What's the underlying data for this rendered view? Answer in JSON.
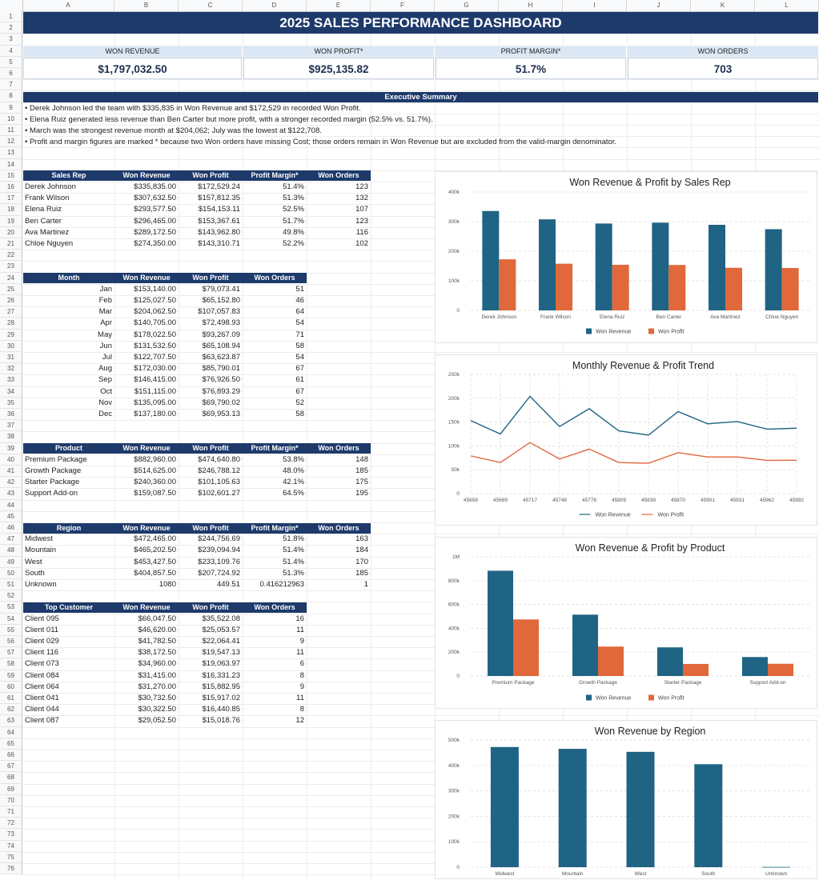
{
  "columns": [
    "A",
    "B",
    "C",
    "D",
    "E",
    "F",
    "G",
    "H",
    "I",
    "J",
    "K",
    "L"
  ],
  "rows": [
    "1",
    "2",
    "3",
    "4",
    "5",
    "6",
    "7",
    "8",
    "9",
    "10",
    "11",
    "12",
    "13",
    "14",
    "15",
    "16",
    "17",
    "18",
    "19",
    "20",
    "21",
    "22",
    "23",
    "24",
    "25",
    "26",
    "27",
    "28",
    "29",
    "30",
    "31",
    "32",
    "33",
    "34",
    "35",
    "36",
    "37",
    "38",
    "39",
    "40",
    "41",
    "42",
    "43",
    "44",
    "45",
    "46",
    "47",
    "48",
    "49",
    "50",
    "51",
    "52",
    "53",
    "54",
    "55",
    "56",
    "57",
    "58",
    "59",
    "60",
    "61",
    "62",
    "63",
    "64",
    "65",
    "66",
    "67",
    "68",
    "69",
    "70",
    "71",
    "72",
    "73",
    "74",
    "75",
    "76"
  ],
  "title": "2025 SALES PERFORMANCE DASHBOARD",
  "kpis": [
    {
      "label": "WON REVENUE",
      "value": "$1,797,032.50"
    },
    {
      "label": "WON PROFIT*",
      "value": "$925,135.82"
    },
    {
      "label": "PROFIT MARGIN*",
      "value": "51.7%"
    },
    {
      "label": "WON ORDERS",
      "value": "703"
    }
  ],
  "summary": {
    "heading": "Executive Summary",
    "lines": [
      "• Derek Johnson led the team with $335,835 in Won Revenue and $172,529 in recorded Won Profit.",
      "• Elena Ruiz generated less revenue than Ben Carter but more profit, with a stronger recorded margin (52.5% vs. 51.7%).",
      "• March was the strongest revenue month at $204,062; July was the lowest at $122,708.",
      "• Profit and margin figures are marked * because two Won orders have missing Cost; those orders remain in Won Revenue but are excluded from the valid-margin denominator."
    ]
  },
  "tables": {
    "reps": {
      "headers": [
        "Sales Rep",
        "Won Revenue",
        "Won Profit",
        "Profit Margin*",
        "Won Orders"
      ],
      "rows": [
        [
          "Derek Johnson",
          "$335,835.00",
          "$172,529.24",
          "51.4%",
          "123"
        ],
        [
          "Frank Wilson",
          "$307,632.50",
          "$157,812.35",
          "51.3%",
          "132"
        ],
        [
          "Elena Ruiz",
          "$293,577.50",
          "$154,153.11",
          "52.5%",
          "107"
        ],
        [
          "Ben Carter",
          "$296,465.00",
          "$153,367.61",
          "51.7%",
          "123"
        ],
        [
          "Ava Martinez",
          "$289,172.50",
          "$143,962.80",
          "49.8%",
          "116"
        ],
        [
          "Chloe Nguyen",
          "$274,350.00",
          "$143,310.71",
          "52.2%",
          "102"
        ]
      ]
    },
    "months": {
      "headers": [
        "Month",
        "Won Revenue",
        "Won Profit",
        "Won Orders"
      ],
      "rows": [
        [
          "Jan",
          "$153,140.00",
          "$79,073.41",
          "51"
        ],
        [
          "Feb",
          "$125,027.50",
          "$65,152.80",
          "46"
        ],
        [
          "Mar",
          "$204,062.50",
          "$107,057.83",
          "64"
        ],
        [
          "Apr",
          "$140,705.00",
          "$72,498.93",
          "54"
        ],
        [
          "May",
          "$178,022.50",
          "$93,267.09",
          "71"
        ],
        [
          "Jun",
          "$131,532.50",
          "$65,108.94",
          "58"
        ],
        [
          "Jul",
          "$122,707.50",
          "$63,623.87",
          "54"
        ],
        [
          "Aug",
          "$172,030.00",
          "$85,790.01",
          "67"
        ],
        [
          "Sep",
          "$146,415.00",
          "$76,926.50",
          "61"
        ],
        [
          "Oct",
          "$151,115.00",
          "$76,893.29",
          "67"
        ],
        [
          "Nov",
          "$135,095.00",
          "$69,790.02",
          "52"
        ],
        [
          "Dec",
          "$137,180.00",
          "$69,953.13",
          "58"
        ]
      ]
    },
    "products": {
      "headers": [
        "Product",
        "Won Revenue",
        "Won Profit",
        "Profit Margin*",
        "Won Orders"
      ],
      "rows": [
        [
          "Premium Package",
          "$882,960.00",
          "$474,640.80",
          "53.8%",
          "148"
        ],
        [
          "Growth Package",
          "$514,625.00",
          "$246,788.12",
          "48.0%",
          "185"
        ],
        [
          "Starter Package",
          "$240,360.00",
          "$101,105.63",
          "42.1%",
          "175"
        ],
        [
          "Support Add-on",
          "$159,087.50",
          "$102,601.27",
          "64.5%",
          "195"
        ]
      ]
    },
    "regions": {
      "headers": [
        "Region",
        "Won Revenue",
        "Won Profit",
        "Profit Margin*",
        "Won Orders"
      ],
      "rows": [
        [
          "Midwest",
          "$472,465.00",
          "$244,756.69",
          "51.8%",
          "163"
        ],
        [
          "Mountain",
          "$465,202.50",
          "$239,094.94",
          "51.4%",
          "184"
        ],
        [
          "West",
          "$453,427.50",
          "$233,109.76",
          "51.4%",
          "170"
        ],
        [
          "South",
          "$404,857.50",
          "$207,724.92",
          "51.3%",
          "185"
        ],
        [
          "Unknown",
          "1080",
          "449.51",
          "0.416212963",
          "1"
        ]
      ]
    },
    "customers": {
      "headers": [
        "Top Customer",
        "Won Revenue",
        "Won Profit",
        "Won Orders"
      ],
      "rows": [
        [
          "Client 095",
          "$66,047.50",
          "$35,522.08",
          "16"
        ],
        [
          "Client 011",
          "$46,620.00",
          "$25,053.57",
          "11"
        ],
        [
          "Client 029",
          "$41,782.50",
          "$22,064.41",
          "9"
        ],
        [
          "Client 116",
          "$38,172.50",
          "$19,547.13",
          "11"
        ],
        [
          "Client 073",
          "$34,960.00",
          "$19,063.97",
          "6"
        ],
        [
          "Client 084",
          "$31,415.00",
          "$16,331.23",
          "8"
        ],
        [
          "Client 064",
          "$31,270.00",
          "$15,882.95",
          "9"
        ],
        [
          "Client 041",
          "$30,732.50",
          "$15,917.02",
          "11"
        ],
        [
          "Client 044",
          "$30,322.50",
          "$16,440.85",
          "8"
        ],
        [
          "Client 087",
          "$29,052.50",
          "$15,018.76",
          "12"
        ]
      ]
    }
  },
  "colors": {
    "revenue": "#1f6484",
    "profit": "#e0683a",
    "header_bg": "#1e3a6b",
    "kpi_bg": "#dbe7f5"
  },
  "chart_data": [
    {
      "type": "bar",
      "title": "Won Revenue & Profit by Sales Rep",
      "categories": [
        "Derek Johnson",
        "Frank Wilson",
        "Elena Ruiz",
        "Ben Carter",
        "Ava Martinez",
        "Chloe Nguyen"
      ],
      "series": [
        {
          "name": "Won Revenue",
          "values": [
            335835,
            307632.5,
            293577.5,
            296465,
            289172.5,
            274350
          ]
        },
        {
          "name": "Won Profit",
          "values": [
            172529.24,
            157812.35,
            154153.11,
            153367.61,
            143962.8,
            143310.71
          ]
        }
      ],
      "ylim": [
        0,
        400000
      ],
      "yticks": [
        "0",
        "100k",
        "200k",
        "300k",
        "400k"
      ],
      "grid": true,
      "legend": "bottom"
    },
    {
      "type": "line",
      "title": "Monthly Revenue & Profit Trend",
      "x": [
        "45658",
        "45689",
        "45717",
        "45748",
        "45778",
        "45809",
        "45839",
        "45870",
        "45901",
        "45931",
        "45962",
        "45992"
      ],
      "series": [
        {
          "name": "Won Revenue",
          "values": [
            153140,
            125027.5,
            204062.5,
            140705,
            178022.5,
            131532.5,
            122707.5,
            172030,
            146415,
            151115,
            135095,
            137180
          ]
        },
        {
          "name": "Won Profit",
          "values": [
            79073.41,
            65152.8,
            107057.83,
            72498.93,
            93267.09,
            65108.94,
            63623.87,
            85790.01,
            76926.5,
            76893.29,
            69790.02,
            69953.13
          ]
        }
      ],
      "ylim": [
        0,
        250000
      ],
      "yticks": [
        "0",
        "50k",
        "100k",
        "150k",
        "200k",
        "250k"
      ],
      "grid": true,
      "legend": "bottom"
    },
    {
      "type": "bar",
      "title": "Won Revenue & Profit by Product",
      "categories": [
        "Premium Package",
        "Growth Package",
        "Starter Package",
        "Support Add-on"
      ],
      "series": [
        {
          "name": "Won Revenue",
          "values": [
            882960,
            514625,
            240360,
            159087.5
          ]
        },
        {
          "name": "Won Profit",
          "values": [
            474640.8,
            246788.12,
            101105.63,
            102601.27
          ]
        }
      ],
      "ylim": [
        0,
        1000000
      ],
      "yticks": [
        "0",
        "200k",
        "400k",
        "600k",
        "800k",
        "1M"
      ],
      "grid": true,
      "legend": "bottom"
    },
    {
      "type": "bar",
      "title": "Won Revenue by Region",
      "categories": [
        "Midwest",
        "Mountain",
        "West",
        "South",
        "Unknown"
      ],
      "series": [
        {
          "name": "",
          "values": [
            472465,
            465202.5,
            453427.5,
            404857.5,
            1080
          ]
        }
      ],
      "ylim": [
        0,
        500000
      ],
      "yticks": [
        "0",
        "100k",
        "200k",
        "300k",
        "400k",
        "500k"
      ],
      "grid": true,
      "legend": "none"
    }
  ]
}
